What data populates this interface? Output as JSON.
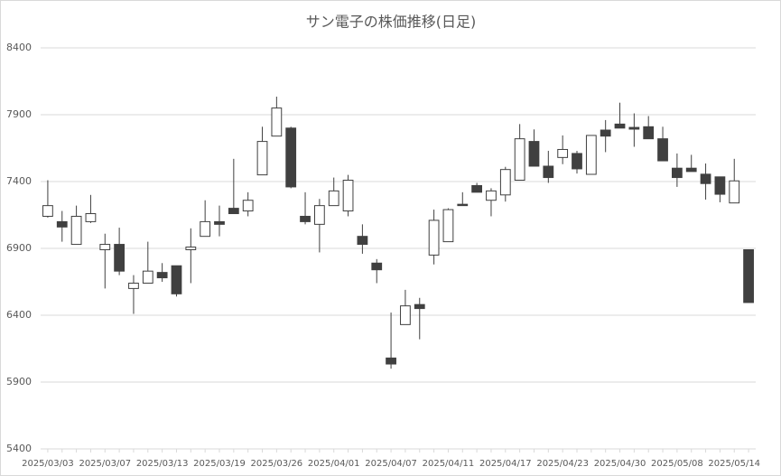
{
  "chart_data": {
    "type": "candlestick",
    "title": "サン電子の株価推移(日足)",
    "categories": [
      "2025/03/03",
      null,
      null,
      null,
      "2025/03/07",
      null,
      null,
      null,
      "2025/03/13",
      null,
      null,
      null,
      "2025/03/19",
      null,
      null,
      null,
      "2025/03/26",
      null,
      null,
      null,
      "2025/04/01",
      null,
      null,
      null,
      "2025/04/07",
      null,
      null,
      null,
      "2025/04/11",
      null,
      null,
      null,
      "2025/04/17",
      null,
      null,
      null,
      "2025/04/23",
      null,
      null,
      null,
      "2025/04/30",
      null,
      null,
      null,
      "2025/05/08",
      null,
      null,
      null,
      "2025/05/14",
      null
    ],
    "open": [
      7140,
      7100,
      6930,
      7100,
      6890,
      6930,
      6600,
      6640,
      6720,
      6770,
      6890,
      6990,
      7100,
      7200,
      7180,
      7450,
      7740,
      7800,
      7140,
      7080,
      7220,
      7180,
      6990,
      6790,
      6080,
      6330,
      6480,
      6850,
      6950,
      7230,
      7370,
      7260,
      7300,
      7410,
      7700,
      7515,
      7580,
      7610,
      7454,
      7785,
      7830,
      7805,
      7810,
      7720,
      7500,
      7500,
      7455,
      7435,
      7240,
      6890
    ],
    "high": [
      7410,
      7180,
      7220,
      7300,
      7010,
      7055,
      6700,
      6950,
      6790,
      6770,
      7050,
      7260,
      7220,
      7570,
      7320,
      7810,
      8035,
      7810,
      7320,
      7270,
      7430,
      7450,
      7080,
      6820,
      6420,
      6590,
      6530,
      7190,
      7200,
      7320,
      7390,
      7350,
      7510,
      7830,
      7790,
      7630,
      7745,
      7630,
      7745,
      7860,
      7990,
      7910,
      7890,
      7810,
      7610,
      7600,
      7535,
      7435,
      7570,
      6890
    ],
    "low": [
      7130,
      6950,
      6930,
      7090,
      6600,
      6700,
      6410,
      6640,
      6650,
      6540,
      6640,
      6990,
      6990,
      7160,
      7140,
      7450,
      7740,
      7350,
      7080,
      6870,
      7220,
      7140,
      6860,
      6640,
      6000,
      6330,
      6220,
      6780,
      6950,
      7220,
      7320,
      7140,
      7250,
      7410,
      7515,
      7390,
      7530,
      7460,
      7454,
      7620,
      7800,
      7660,
      7720,
      7555,
      7360,
      7475,
      7265,
      7245,
      7240,
      6495
    ],
    "close": [
      7220,
      7060,
      7140,
      7160,
      6930,
      6730,
      6640,
      6730,
      6680,
      6560,
      6910,
      7100,
      7080,
      7160,
      7260,
      7700,
      7950,
      7360,
      7100,
      7220,
      7330,
      7410,
      6930,
      6740,
      6035,
      6470,
      6450,
      7110,
      7190,
      7220,
      7320,
      7330,
      7490,
      7720,
      7515,
      7430,
      7640,
      7495,
      7745,
      7740,
      7800,
      7792,
      7720,
      7555,
      7430,
      7475,
      7385,
      7305,
      7405,
      6495
    ],
    "up_color": "#ffffff",
    "down_color": "#404040",
    "ylim": [
      5400,
      8400
    ],
    "yticks": [
      5400,
      5900,
      6400,
      6900,
      7400,
      7900,
      8400
    ],
    "grid": true
  }
}
